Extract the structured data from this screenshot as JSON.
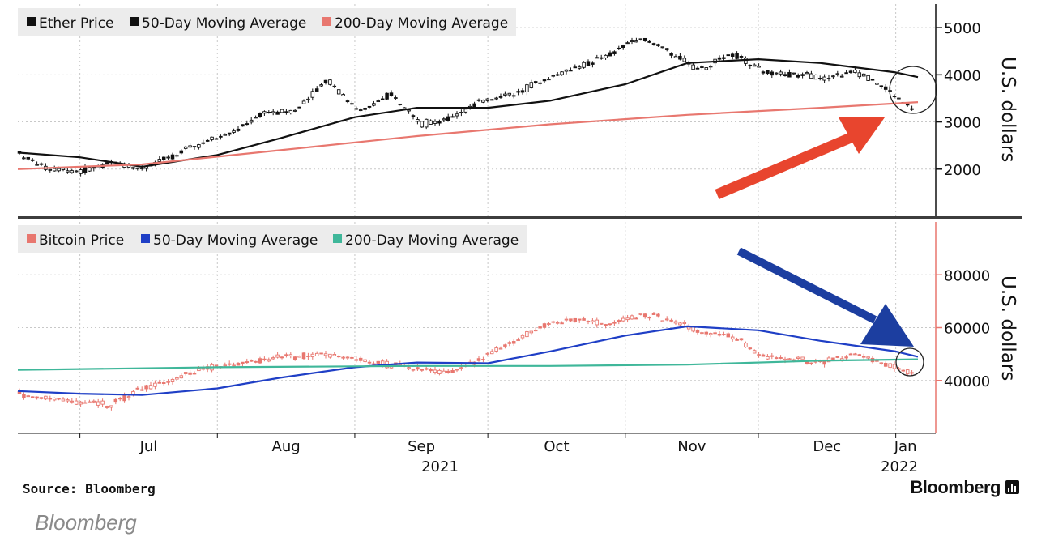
{
  "chart_data": [
    {
      "type": "candlestick",
      "panel": "top",
      "ylabel": "U.S. dollars",
      "ylim": [
        1000,
        5500
      ],
      "yticks": [
        2000,
        3000,
        4000,
        5000
      ],
      "legend_position": "top-left",
      "grid": true,
      "series": [
        {
          "name": "Ether Price",
          "color": "#111111",
          "x": [
            "2021-06-17",
            "2021-06-24",
            "2021-07-01",
            "2021-07-08",
            "2021-07-15",
            "2021-07-22",
            "2021-07-29",
            "2021-08-05",
            "2021-08-12",
            "2021-08-19",
            "2021-08-26",
            "2021-09-02",
            "2021-09-09",
            "2021-09-16",
            "2021-09-23",
            "2021-09-30",
            "2021-10-07",
            "2021-10-14",
            "2021-10-21",
            "2021-10-28",
            "2021-11-04",
            "2021-11-11",
            "2021-11-18",
            "2021-11-25",
            "2021-12-02",
            "2021-12-09",
            "2021-12-16",
            "2021-12-23",
            "2021-12-30",
            "2022-01-06"
          ],
          "values": [
            2350,
            1980,
            1950,
            2150,
            2000,
            2300,
            2550,
            2800,
            3200,
            3250,
            3900,
            3200,
            3600,
            2950,
            3100,
            3450,
            3600,
            3900,
            4150,
            4400,
            4800,
            4500,
            4100,
            4450,
            4100,
            4000,
            3950,
            4050,
            3700,
            3200
          ]
        },
        {
          "name": "50-Day Moving Average",
          "color": "#111111",
          "x": [
            "2021-06-17",
            "2021-07-01",
            "2021-07-15",
            "2021-08-01",
            "2021-08-15",
            "2021-09-01",
            "2021-09-15",
            "2021-10-01",
            "2021-10-15",
            "2021-11-01",
            "2021-11-15",
            "2021-12-01",
            "2021-12-15",
            "2022-01-01",
            "2022-01-06"
          ],
          "values": [
            2350,
            2250,
            2050,
            2300,
            2650,
            3100,
            3300,
            3300,
            3450,
            3800,
            4250,
            4330,
            4250,
            4050,
            3950
          ]
        },
        {
          "name": "200-Day Moving Average",
          "color": "#e8776f",
          "x": [
            "2021-06-17",
            "2021-07-15",
            "2021-08-15",
            "2021-09-15",
            "2021-10-15",
            "2021-11-15",
            "2021-12-15",
            "2022-01-06"
          ],
          "values": [
            2000,
            2100,
            2400,
            2700,
            2950,
            3150,
            3300,
            3420
          ]
        }
      ]
    },
    {
      "type": "candlestick",
      "panel": "bottom",
      "ylabel": "U.S. dollars",
      "ylim": [
        20000,
        100000
      ],
      "yticks": [
        40000,
        60000,
        80000
      ],
      "legend_position": "top-left",
      "grid": true,
      "series": [
        {
          "name": "Bitcoin Price",
          "color": "#e8776f",
          "x": [
            "2021-06-17",
            "2021-06-24",
            "2021-07-01",
            "2021-07-08",
            "2021-07-15",
            "2021-07-22",
            "2021-07-29",
            "2021-08-05",
            "2021-08-12",
            "2021-08-19",
            "2021-08-26",
            "2021-09-02",
            "2021-09-09",
            "2021-09-16",
            "2021-09-23",
            "2021-09-30",
            "2021-10-07",
            "2021-10-14",
            "2021-10-21",
            "2021-10-28",
            "2021-11-04",
            "2021-11-11",
            "2021-11-18",
            "2021-11-25",
            "2021-12-02",
            "2021-12-09",
            "2021-12-16",
            "2021-12-23",
            "2021-12-30",
            "2022-01-06"
          ],
          "values": [
            35000,
            33000,
            32000,
            31000,
            37000,
            40000,
            45000,
            46000,
            48000,
            49000,
            50000,
            48000,
            46000,
            44000,
            43000,
            49000,
            55000,
            61000,
            63000,
            61000,
            65000,
            63000,
            58000,
            57000,
            49000,
            48000,
            47000,
            50000,
            46000,
            42000
          ]
        },
        {
          "name": "50-Day Moving Average",
          "color": "#1f3fc6",
          "x": [
            "2021-06-17",
            "2021-07-01",
            "2021-07-15",
            "2021-08-01",
            "2021-08-15",
            "2021-09-01",
            "2021-09-15",
            "2021-10-01",
            "2021-10-15",
            "2021-11-01",
            "2021-11-15",
            "2021-12-01",
            "2021-12-15",
            "2022-01-01",
            "2022-01-06"
          ],
          "values": [
            36000,
            35000,
            34500,
            37000,
            41000,
            45000,
            46800,
            46500,
            51000,
            57000,
            60500,
            59000,
            55000,
            51000,
            49000
          ]
        },
        {
          "name": "200-Day Moving Average",
          "color": "#3fb79a",
          "x": [
            "2021-06-17",
            "2021-08-01",
            "2021-09-15",
            "2021-10-15",
            "2021-11-15",
            "2021-12-15",
            "2022-01-06"
          ],
          "values": [
            44000,
            45000,
            45500,
            45500,
            46000,
            47500,
            48000
          ]
        }
      ]
    }
  ],
  "x_axis": {
    "tick_labels": [
      "Jul",
      "Aug",
      "Sep",
      "Oct",
      "Nov",
      "Dec",
      "Jan"
    ],
    "year_labels": [
      "2021",
      "2022"
    ]
  },
  "annotations": {
    "top_arrow_color": "#e8452e",
    "bottom_arrow_color": "#1c3ea0"
  },
  "footer": {
    "source": "Source: Bloomberg",
    "brand": "Bloomberg",
    "caption": "Bloomberg"
  }
}
